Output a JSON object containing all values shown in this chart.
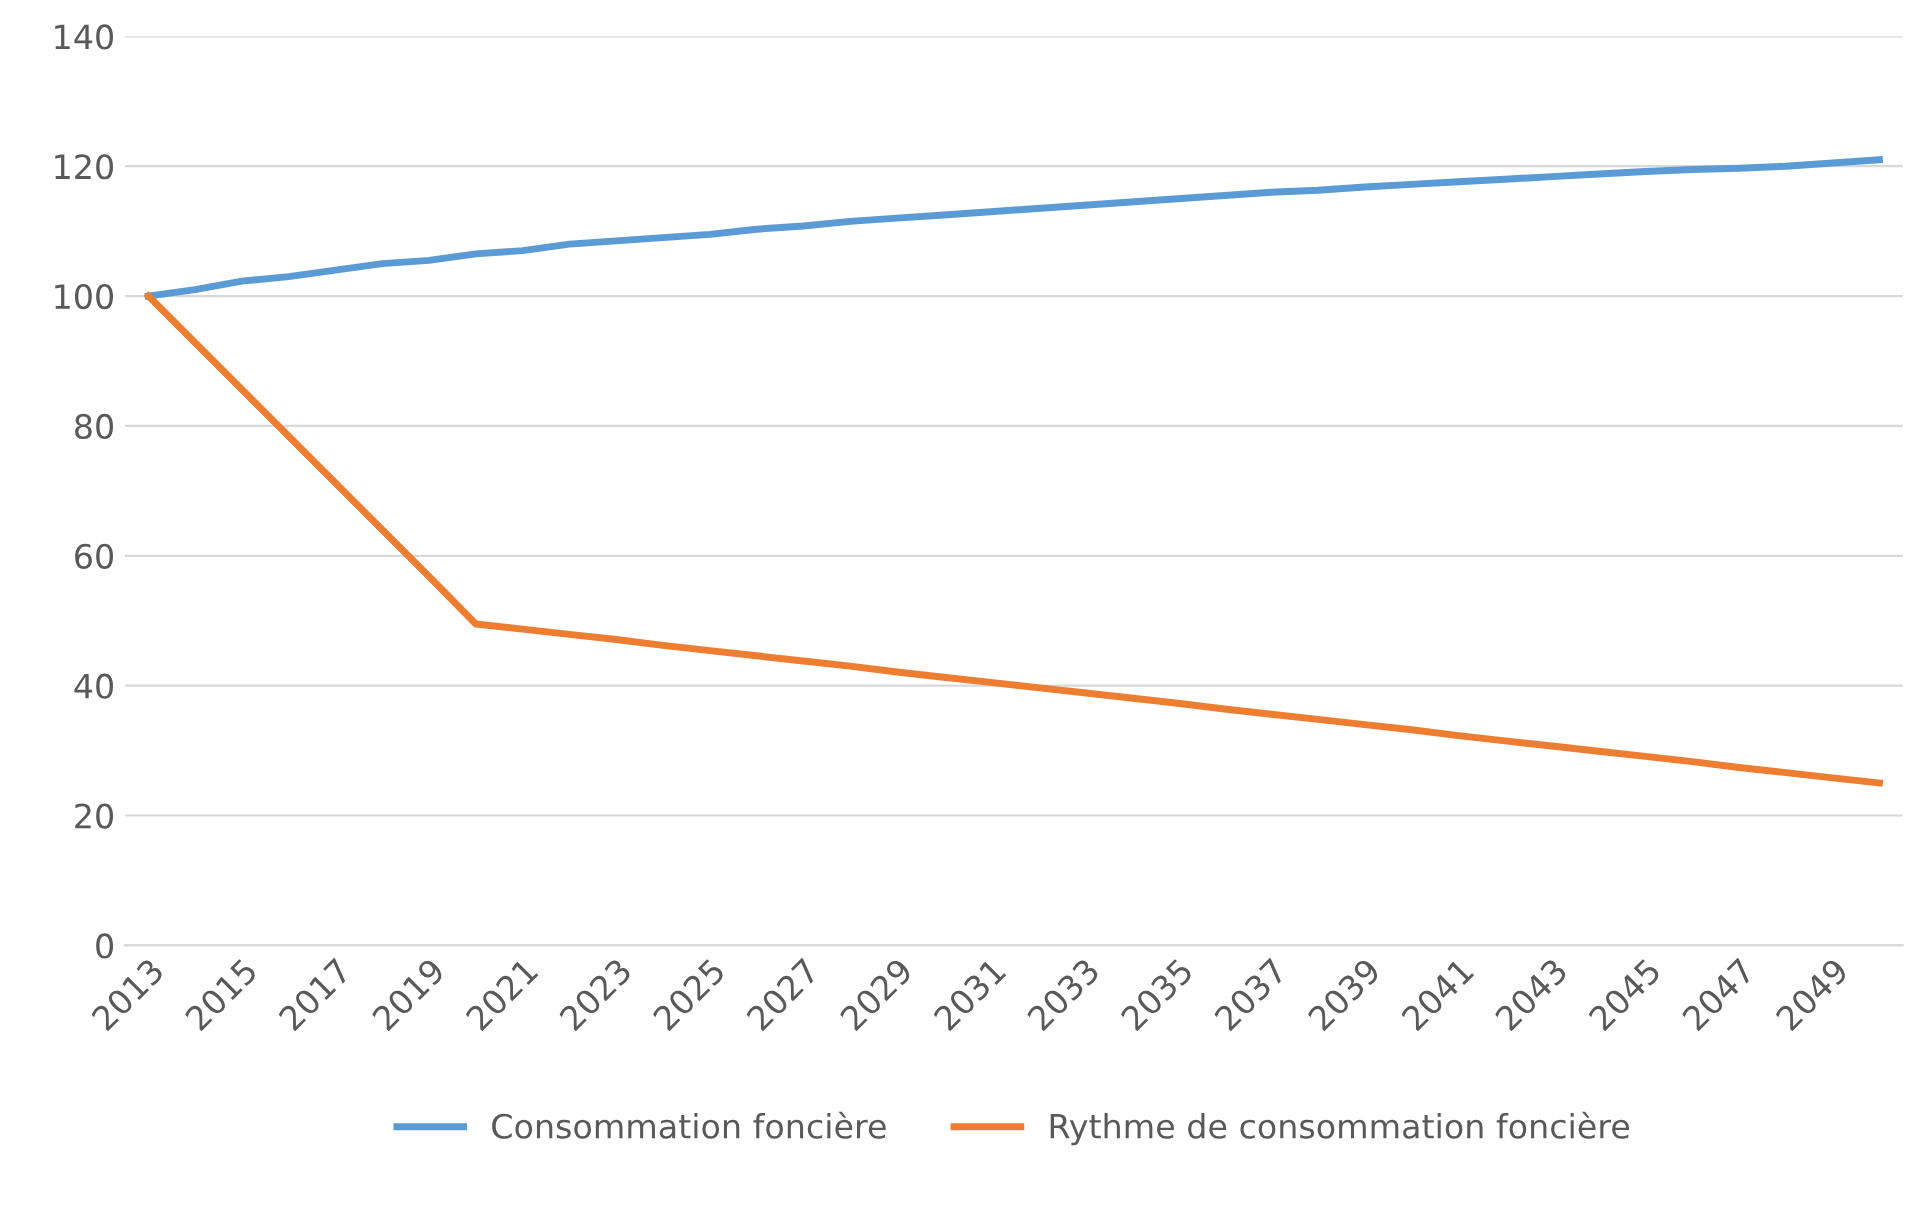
{
  "chart_data": {
    "type": "line",
    "categories": [
      "2013",
      null,
      "2015",
      null,
      "2017",
      null,
      "2019",
      null,
      "2021",
      null,
      "2023",
      null,
      "2025",
      null,
      "2027",
      null,
      "2029",
      null,
      "2031",
      null,
      "2033",
      null,
      "2035",
      null,
      "2037",
      null,
      "2039",
      null,
      "2041",
      null,
      "2043",
      null,
      "2045",
      null,
      "2047",
      null,
      "2049",
      null
    ],
    "series": [
      {
        "name": "Consommation foncière",
        "color": "#5b9bd5",
        "values": [
          100,
          101,
          102.3,
          103,
          104,
          105,
          105.5,
          106.5,
          107,
          108,
          108.5,
          109,
          109.5,
          110.3,
          110.8,
          111.5,
          112,
          112.5,
          113,
          113.5,
          114,
          114.5,
          115,
          115.5,
          116,
          116.3,
          116.8,
          117.2,
          117.6,
          118,
          118.4,
          118.8,
          119.2,
          119.5,
          119.7,
          120,
          120.5,
          121
        ]
      },
      {
        "name": "Rythme de consommation foncière",
        "color": "#ed7d31",
        "values": [
          100,
          92.8,
          85.6,
          78.4,
          71.2,
          64,
          56.8,
          49.5,
          48.7,
          47.9,
          47.1,
          46.2,
          45.4,
          44.6,
          43.8,
          43,
          42.1,
          41.3,
          40.5,
          39.7,
          38.9,
          38.1,
          37.3,
          36.4,
          35.6,
          34.8,
          34,
          33.2,
          32.3,
          31.5,
          30.7,
          29.9,
          29.1,
          28.3,
          27.4,
          26.6,
          25.8,
          25
        ]
      }
    ],
    "ylim": [
      0,
      140
    ],
    "yticks": [
      0,
      20,
      40,
      60,
      80,
      100,
      120,
      140
    ],
    "grid": "y",
    "legend": "bottom",
    "marker": "none",
    "line_style": "solid"
  }
}
